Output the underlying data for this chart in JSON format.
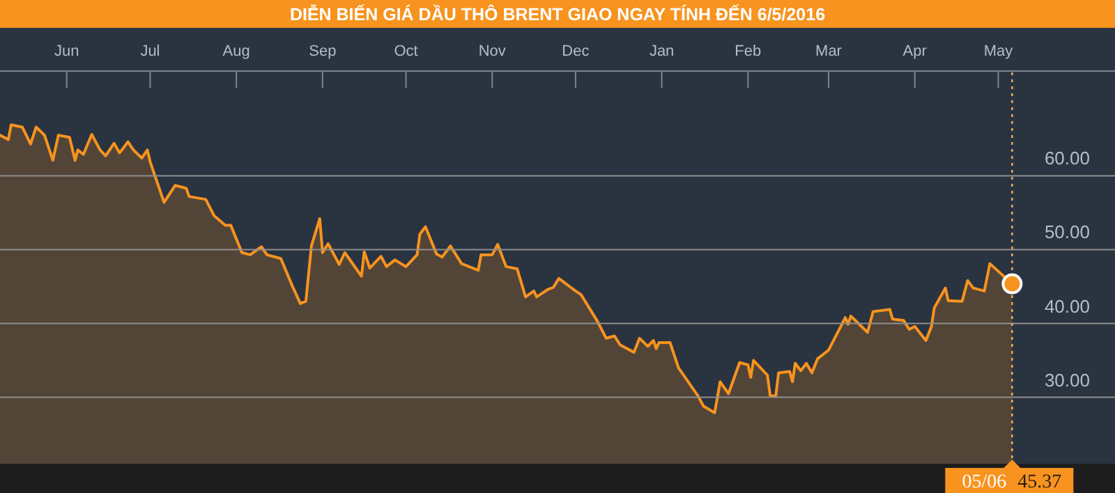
{
  "chart_data": {
    "type": "area",
    "title": "DIỄN BIẾN GIÁ DẦU THÔ BRENT GIAO NGAY TÍNH ĐẾN 6/5/2016",
    "xlim": [
      "2015-05-08",
      "2016-06-12"
    ],
    "xticks": [
      {
        "value": "2015-06-01",
        "label": "Jun"
      },
      {
        "value": "2015-07-01",
        "label": "Jul"
      },
      {
        "value": "2015-08-01",
        "label": "Aug"
      },
      {
        "value": "2015-09-01",
        "label": "Sep"
      },
      {
        "value": "2015-10-01",
        "label": "Oct"
      },
      {
        "value": "2015-11-01",
        "label": "Nov"
      },
      {
        "value": "2015-12-01",
        "label": "Dec"
      },
      {
        "value": "2016-01-01",
        "label": "Jan"
      },
      {
        "value": "2016-02-01",
        "label": "Feb"
      },
      {
        "value": "2016-03-01",
        "label": "Mar"
      },
      {
        "value": "2016-04-01",
        "label": "Apr"
      },
      {
        "value": "2016-05-01",
        "label": "May"
      }
    ],
    "ylim": [
      21,
      74
    ],
    "yticks": [
      {
        "value": 30,
        "label": "30.00"
      },
      {
        "value": 40,
        "label": "40.00"
      },
      {
        "value": 50,
        "label": "50.00"
      },
      {
        "value": 60,
        "label": "60.00"
      }
    ],
    "grid": "y",
    "series": [
      {
        "color": "#f7931e",
        "x": [
          "2015-05-08",
          "2015-05-11",
          "2015-05-12",
          "2015-05-16",
          "2015-05-19",
          "2015-05-21",
          "2015-05-24",
          "2015-05-27",
          "2015-05-29",
          "2015-06-02",
          "2015-06-04",
          "2015-06-05",
          "2015-06-07",
          "2015-06-10",
          "2015-06-13",
          "2015-06-15",
          "2015-06-18",
          "2015-06-20",
          "2015-06-23",
          "2015-06-25",
          "2015-06-28",
          "2015-06-30",
          "2015-07-01",
          "2015-07-06",
          "2015-07-10",
          "2015-07-14",
          "2015-07-15",
          "2015-07-21",
          "2015-07-24",
          "2015-07-28",
          "2015-07-30",
          "2015-08-03",
          "2015-08-06",
          "2015-08-10",
          "2015-08-12",
          "2015-08-17",
          "2015-08-21",
          "2015-08-24",
          "2015-08-26",
          "2015-08-28",
          "2015-08-31",
          "2015-09-01",
          "2015-09-03",
          "2015-09-07",
          "2015-09-09",
          "2015-09-15",
          "2015-09-16",
          "2015-09-18",
          "2015-09-22",
          "2015-09-24",
          "2015-09-27",
          "2015-10-01",
          "2015-10-05",
          "2015-10-06",
          "2015-10-08",
          "2015-10-12",
          "2015-10-14",
          "2015-10-17",
          "2015-10-21",
          "2015-10-27",
          "2015-10-28",
          "2015-11-01",
          "2015-11-03",
          "2015-11-06",
          "2015-11-10",
          "2015-11-13",
          "2015-11-16",
          "2015-11-17",
          "2015-11-21",
          "2015-11-23",
          "2015-11-25",
          "2015-12-01",
          "2015-12-03",
          "2015-12-09",
          "2015-12-12",
          "2015-12-15",
          "2015-12-17",
          "2015-12-22",
          "2015-12-24",
          "2015-12-27",
          "2015-12-29",
          "2015-12-30",
          "2015-12-31",
          "2016-01-04",
          "2016-01-07",
          "2016-01-14",
          "2016-01-16",
          "2016-01-20",
          "2016-01-22",
          "2016-01-25",
          "2016-01-29",
          "2016-02-01",
          "2016-02-02",
          "2016-02-03",
          "2016-02-08",
          "2016-02-09",
          "2016-02-11",
          "2016-02-12",
          "2016-02-16",
          "2016-02-17",
          "2016-02-18",
          "2016-02-20",
          "2016-02-22",
          "2016-02-24",
          "2016-02-26",
          "2016-03-01",
          "2016-03-04",
          "2016-03-07",
          "2016-03-08",
          "2016-03-09",
          "2016-03-15",
          "2016-03-17",
          "2016-03-23",
          "2016-03-24",
          "2016-03-28",
          "2016-03-30",
          "2016-04-01",
          "2016-04-05",
          "2016-04-07",
          "2016-04-08",
          "2016-04-12",
          "2016-04-13",
          "2016-04-18",
          "2016-04-20",
          "2016-04-22",
          "2016-04-26",
          "2016-04-28",
          "2016-05-06"
        ],
        "values": [
          65.5,
          64.9,
          66.9,
          66.6,
          64.3,
          66.6,
          65.5,
          62.1,
          65.5,
          65.2,
          62.1,
          63.5,
          62.9,
          65.6,
          63.5,
          62.7,
          64.4,
          63.1,
          64.6,
          63.5,
          62.4,
          63.5,
          61.9,
          56.4,
          58.7,
          58.3,
          57.2,
          56.8,
          54.6,
          53.3,
          53.3,
          49.6,
          49.3,
          50.4,
          49.3,
          48.8,
          45.2,
          42.7,
          43.0,
          50.5,
          54.2,
          49.6,
          50.8,
          48.0,
          49.6,
          46.4,
          49.7,
          47.5,
          49.1,
          47.7,
          48.6,
          47.7,
          49.3,
          52.1,
          53.1,
          49.4,
          49.0,
          50.5,
          48.1,
          47.2,
          49.3,
          49.3,
          50.7,
          47.7,
          47.4,
          43.6,
          44.4,
          43.6,
          44.6,
          44.9,
          46.1,
          44.4,
          43.9,
          40.2,
          38.0,
          38.3,
          37.1,
          36.1,
          38.0,
          36.9,
          37.7,
          36.6,
          37.4,
          37.4,
          34.0,
          30.2,
          28.8,
          27.9,
          32.1,
          30.5,
          34.7,
          34.4,
          32.7,
          35.0,
          33.0,
          30.2,
          30.2,
          33.3,
          33.5,
          32.1,
          34.6,
          33.6,
          34.6,
          33.3,
          35.2,
          36.4,
          38.6,
          40.8,
          39.9,
          41.0,
          38.8,
          41.6,
          41.9,
          40.6,
          40.4,
          39.2,
          39.6,
          37.7,
          39.6,
          42.1,
          44.8,
          43.1,
          43.0,
          45.8,
          44.8,
          44.4,
          48.1,
          45.37
        ]
      },
      {
        "type": "scatter",
        "color": "#f7931e",
        "x": [
          "2016-05-06"
        ],
        "values": [
          45.37
        ]
      }
    ],
    "ref_lines": [
      {
        "axis": "x",
        "value": "2016-05-06",
        "label": "05/06",
        "color": "#f2b45a",
        "line_style": "dotted"
      }
    ],
    "annotations": [
      "45.37"
    ]
  }
}
